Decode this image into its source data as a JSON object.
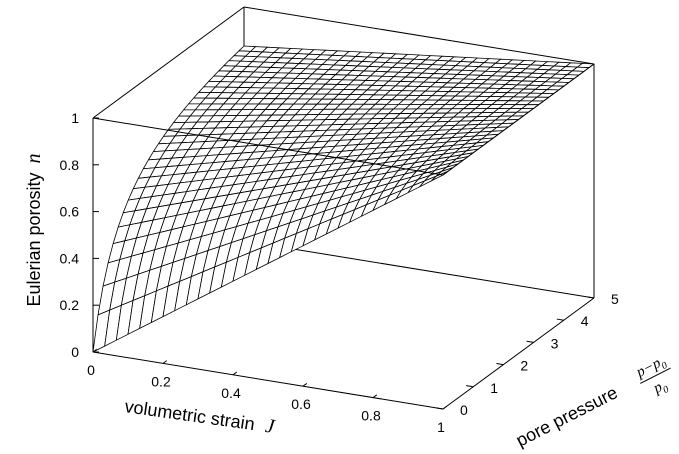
{
  "chart_data": {
    "type": "surface",
    "title": "",
    "function": "n(J, p) = 1 - (1 - J) / (1 + (p - p0)/p0)",
    "x": {
      "label": "volumetric strain",
      "var": "J",
      "range": [
        0,
        1
      ],
      "ticks": [
        "0",
        "0.2",
        "0.4",
        "0.6",
        "0.8",
        "1"
      ]
    },
    "y": {
      "label": "pore pressure",
      "frac_num": "p−p",
      "frac_num_sub": "0",
      "frac_den": "p",
      "frac_den_sub": "0",
      "range": [
        0,
        5
      ],
      "ticks": [
        "0",
        "1",
        "2",
        "3",
        "4",
        "5"
      ]
    },
    "z": {
      "label": "Eulerian porosity",
      "var": "n",
      "range": [
        0,
        1
      ],
      "ticks": [
        "0",
        "0.2",
        "0.4",
        "0.6",
        "0.8",
        "1"
      ]
    },
    "grid_resolution": [
      30,
      30
    ],
    "sample_values": [
      {
        "J": 0,
        "p": 0,
        "n": 0
      },
      {
        "J": 0,
        "p": 1,
        "n": 0.5
      },
      {
        "J": 0,
        "p": 5,
        "n": 0.833
      },
      {
        "J": 0.5,
        "p": 0,
        "n": 0.5
      },
      {
        "J": 0.5,
        "p": 5,
        "n": 0.917
      },
      {
        "J": 1,
        "p": 0,
        "n": 1
      },
      {
        "J": 1,
        "p": 5,
        "n": 1
      }
    ]
  }
}
